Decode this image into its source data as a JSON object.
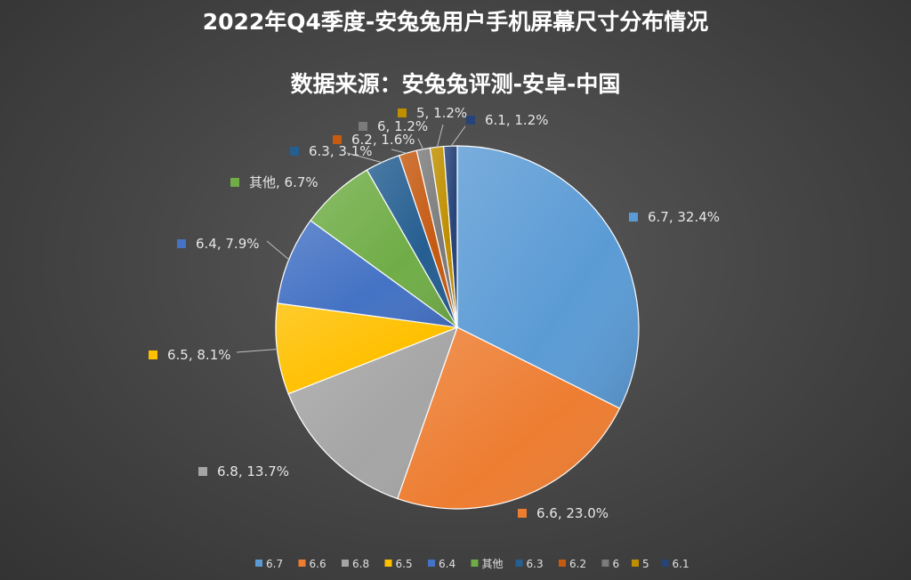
{
  "chart_data": {
    "type": "pie",
    "title": "2022年Q4季度-安兔兔用户手机屏幕尺寸分布情况",
    "subtitle": "数据来源：安兔兔评测-安卓-中国",
    "legend_position": "bottom",
    "slices": [
      {
        "name": "6.7",
        "value": 32.4,
        "label": "6.7, 32.4%",
        "color": "#5b9bd5"
      },
      {
        "name": "6.6",
        "value": 23.0,
        "label": "6.6, 23.0%",
        "color": "#ed7d31"
      },
      {
        "name": "6.8",
        "value": 13.7,
        "label": "6.8, 13.7%",
        "color": "#a5a5a5"
      },
      {
        "name": "6.5",
        "value": 8.1,
        "label": "6.5, 8.1%",
        "color": "#ffc000"
      },
      {
        "name": "6.4",
        "value": 7.9,
        "label": "6.4, 7.9%",
        "color": "#4472c4"
      },
      {
        "name": "其他",
        "value": 6.7,
        "label": "其他, 6.7%",
        "color": "#70ad47"
      },
      {
        "name": "6.3",
        "value": 3.1,
        "label": "6.3, 3.1%",
        "color": "#255e91"
      },
      {
        "name": "6.2",
        "value": 1.6,
        "label": "6.2, 1.6%",
        "color": "#c55a11"
      },
      {
        "name": "6",
        "value": 1.2,
        "label": "6, 1.2%",
        "color": "#7b7b7b"
      },
      {
        "name": "5",
        "value": 1.2,
        "label": "5, 1.2%",
        "color": "#bf8f00"
      },
      {
        "name": "6.1",
        "value": 1.2,
        "label": "6.1, 1.2%",
        "color": "#264478"
      }
    ]
  }
}
